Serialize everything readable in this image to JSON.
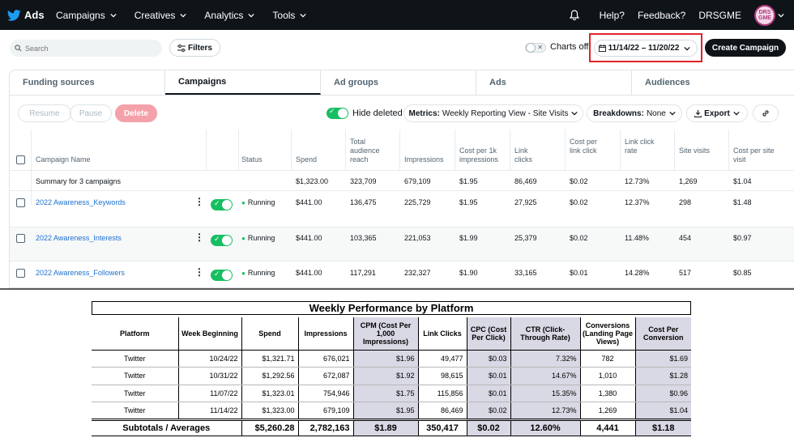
{
  "nav": {
    "brand": "Ads",
    "items": [
      {
        "label": "Campaigns"
      },
      {
        "label": "Creatives"
      },
      {
        "label": "Analytics"
      },
      {
        "label": "Tools"
      }
    ],
    "help": "Help?",
    "feedback": "Feedback?",
    "account": "DRSGME",
    "avatar_text": "DRS GME"
  },
  "toolbar": {
    "search_placeholder": "Search",
    "filters_label": "Filters",
    "charts_label": "Charts off",
    "date_range": "11/14/22 – 11/20/22",
    "create_label": "Create Campaign"
  },
  "tabs": [
    {
      "label": "Funding sources",
      "active": false
    },
    {
      "label": "Campaigns",
      "active": true
    },
    {
      "label": "Ad groups",
      "active": false
    },
    {
      "label": "Ads",
      "active": false
    },
    {
      "label": "Audiences",
      "active": false
    }
  ],
  "controls": {
    "resume": "Resume",
    "pause": "Pause",
    "delete": "Delete",
    "hide_deleted": "Hide deleted",
    "metrics_key": "Metrics:",
    "metrics_value": "Weekly Reporting View - Site Visits",
    "breakdowns_key": "Breakdowns:",
    "breakdowns_value": "None",
    "export": "Export"
  },
  "campaign_table": {
    "headers": [
      "Campaign Name",
      "Status",
      "Spend",
      "Total audience reach",
      "Impressions",
      "Cost per 1k impressions",
      "Link clicks",
      "Cost per link click",
      "Link click rate",
      "Site visits",
      "Cost per site visit"
    ],
    "summary": {
      "label": "Summary for 3 campaigns",
      "values": [
        "$1,323.00",
        "323,709",
        "679,109",
        "$1.95",
        "86,469",
        "$0.02",
        "12.73%",
        "1,269",
        "$1.04"
      ]
    },
    "rows": [
      {
        "name": "2022 Awareness_Keywords",
        "status": "Running",
        "values": [
          "$441.00",
          "136,475",
          "225,729",
          "$1.95",
          "27,925",
          "$0.02",
          "12.37%",
          "298",
          "$1.48"
        ]
      },
      {
        "name": "2022 Awareness_Interests",
        "status": "Running",
        "values": [
          "$441.00",
          "103,365",
          "221,053",
          "$1.99",
          "25,379",
          "$0.02",
          "11.48%",
          "454",
          "$0.97"
        ]
      },
      {
        "name": "2022 Awareness_Followers",
        "status": "Running",
        "values": [
          "$441.00",
          "117,291",
          "232,327",
          "$1.90",
          "33,165",
          "$0.01",
          "14.28%",
          "517",
          "$0.85"
        ]
      }
    ]
  },
  "report": {
    "title": "Weekly Performance by Platform",
    "headers": [
      "Platform",
      "Week Beginning",
      "Spend",
      "Impressions",
      "CPM (Cost Per 1,000 Impressions)",
      "Link Clicks",
      "CPC (Cost Per Click)",
      "CTR (Click-Through Rate)",
      "Conversions (Landing Page Views)",
      "Cost Per Conversion"
    ],
    "rows": [
      [
        "Twitter",
        "10/24/22",
        "$1,321.71",
        "676,021",
        "$1.96",
        "49,477",
        "$0.03",
        "7.32%",
        "782",
        "$1.69"
      ],
      [
        "Twitter",
        "10/31/22",
        "$1,292.56",
        "672,087",
        "$1.92",
        "98,615",
        "$0.01",
        "14.67%",
        "1,010",
        "$1.28"
      ],
      [
        "Twitter",
        "11/07/22",
        "$1,323.01",
        "754,946",
        "$1.75",
        "115,856",
        "$0.01",
        "15.35%",
        "1,380",
        "$0.96"
      ],
      [
        "Twitter",
        "11/14/22",
        "$1,323.00",
        "679,109",
        "$1.95",
        "86,469",
        "$0.02",
        "12.73%",
        "1,269",
        "$1.04"
      ]
    ],
    "total": [
      "Subtotals / Averages",
      "$5,260.28",
      "2,782,163",
      "$1.89",
      "350,417",
      "$0.02",
      "12.60%",
      "4,441",
      "$1.18"
    ]
  },
  "colors": {
    "nav_bg": "#0f1419",
    "link": "#1d6fcf",
    "toggle_on": "#17bf63",
    "delete_bg": "#f4a1aa",
    "highlight_border": "#e0242b",
    "report_shade": "#d9d8e5"
  }
}
